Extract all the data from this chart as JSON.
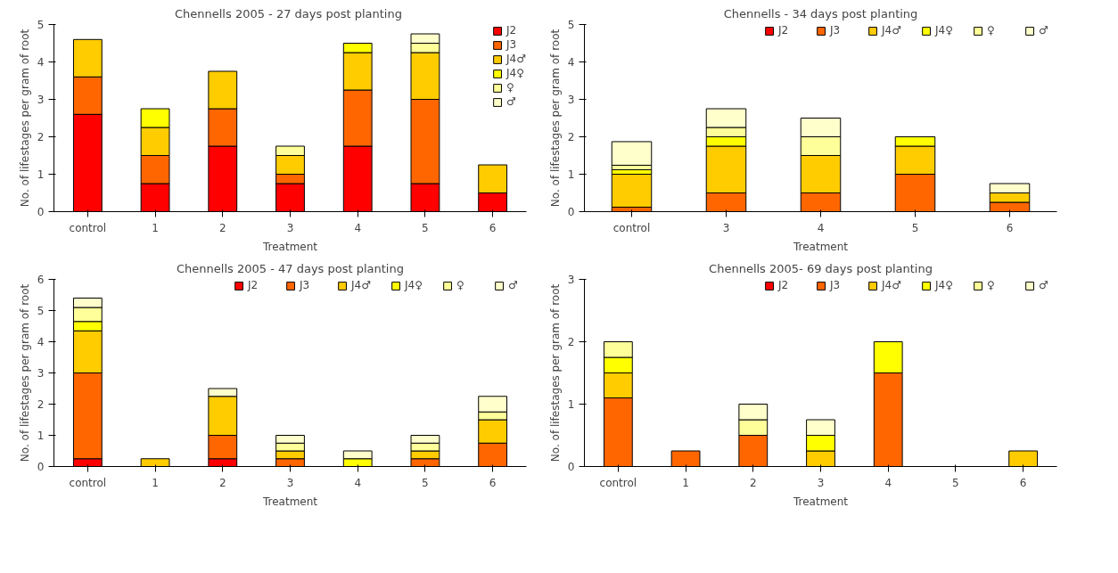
{
  "chart_data": [
    {
      "type": "bar",
      "stacked": true,
      "title": "Chennells  2005 - 27 days post planting",
      "xlabel": "Treatment",
      "ylabel": "No. of lifestages per gram of root",
      "categories": [
        "control",
        "1",
        "2",
        "3",
        "4",
        "5",
        "6"
      ],
      "ylim": [
        0,
        5
      ],
      "yticks": [
        0,
        1,
        2,
        3,
        4,
        5
      ],
      "legend": "top right",
      "grid": false,
      "series": [
        {
          "name": "J2",
          "color": "#ff0000",
          "values": [
            2.6,
            0.75,
            1.75,
            0.75,
            1.75,
            0.75,
            0.5
          ]
        },
        {
          "name": "J3",
          "color": "#ff6600",
          "values": [
            1.0,
            0.75,
            1.0,
            0.25,
            1.5,
            2.25,
            null
          ]
        },
        {
          "name": "J4♂",
          "color": "#ffcc00",
          "values": [
            1.0,
            0.75,
            1.0,
            0.5,
            1.0,
            1.25,
            0.75
          ]
        },
        {
          "name": "J4♀",
          "color": "#ffff00",
          "values": [
            null,
            0.5,
            null,
            null,
            0.25,
            null,
            null
          ]
        },
        {
          "name": "♀",
          "color": "#ffff99",
          "values": [
            null,
            null,
            null,
            0.25,
            null,
            0.25,
            null
          ]
        },
        {
          "name": "♂",
          "color": "#ffffcc",
          "values": [
            null,
            null,
            null,
            null,
            null,
            0.25,
            null
          ]
        }
      ]
    },
    {
      "type": "bar",
      "stacked": true,
      "title": "Chennells - 34 days post planting",
      "xlabel": "Treatment",
      "ylabel": "No. of lifestages per gram of root",
      "categories": [
        "control",
        "3",
        "4",
        "5",
        "6"
      ],
      "ylim": [
        0,
        5
      ],
      "yticks": [
        0,
        1,
        2,
        3,
        4,
        5
      ],
      "legend": "top",
      "grid": false,
      "series": [
        {
          "name": "J2",
          "color": "#ff0000",
          "values": [
            null,
            null,
            null,
            null,
            null
          ]
        },
        {
          "name": "J3",
          "color": "#ff6600",
          "values": [
            0.12,
            0.5,
            0.5,
            1.0,
            0.25
          ]
        },
        {
          "name": "J4♂",
          "color": "#ffcc00",
          "values": [
            0.88,
            1.25,
            1.0,
            0.75,
            0.25
          ]
        },
        {
          "name": "J4♀",
          "color": "#ffff00",
          "values": [
            0.12,
            0.25,
            null,
            0.25,
            null
          ]
        },
        {
          "name": "♀",
          "color": "#ffff99",
          "values": [
            0.12,
            0.25,
            0.5,
            null,
            null
          ]
        },
        {
          "name": "♂",
          "color": "#ffffcc",
          "values": [
            0.63,
            0.5,
            0.5,
            null,
            0.25
          ]
        }
      ]
    },
    {
      "type": "bar",
      "stacked": true,
      "title": "Chennells 2005 - 47 days post planting",
      "xlabel": "Treatment",
      "ylabel": "No. of lifestages per gram of root",
      "categories": [
        "control",
        "1",
        "2",
        "3",
        "4",
        "5",
        "6"
      ],
      "ylim": [
        0,
        6
      ],
      "yticks": [
        0,
        1,
        2,
        3,
        4,
        5,
        6
      ],
      "legend": "top",
      "grid": false,
      "series": [
        {
          "name": "J2",
          "color": "#ff0000",
          "values": [
            0.25,
            null,
            0.25,
            null,
            null,
            null,
            null
          ]
        },
        {
          "name": "J3",
          "color": "#ff6600",
          "values": [
            2.75,
            null,
            0.75,
            0.25,
            null,
            0.25,
            0.75
          ]
        },
        {
          "name": "J4♂",
          "color": "#ffcc00",
          "values": [
            1.35,
            0.25,
            1.25,
            0.25,
            null,
            0.25,
            0.75
          ]
        },
        {
          "name": "J4♀",
          "color": "#ffff00",
          "values": [
            0.3,
            null,
            null,
            null,
            0.25,
            null,
            null
          ]
        },
        {
          "name": "♀",
          "color": "#ffff99",
          "values": [
            0.45,
            null,
            null,
            0.25,
            null,
            0.25,
            0.25
          ]
        },
        {
          "name": "♂",
          "color": "#ffffcc",
          "values": [
            0.3,
            null,
            0.25,
            0.25,
            0.25,
            0.25,
            0.5
          ]
        }
      ]
    },
    {
      "type": "bar",
      "stacked": true,
      "title": "Chennells 2005- 69 days post planting",
      "xlabel": "Treatment",
      "ylabel": "No. of lifestages per gram of root",
      "categories": [
        "control",
        "1",
        "2",
        "3",
        "4",
        "5",
        "6"
      ],
      "ylim": [
        0,
        3
      ],
      "yticks": [
        0,
        1,
        2,
        3
      ],
      "legend": "top",
      "grid": false,
      "series": [
        {
          "name": "J2",
          "color": "#ff0000",
          "values": [
            null,
            null,
            null,
            null,
            null,
            null,
            null
          ]
        },
        {
          "name": "J3",
          "color": "#ff6600",
          "values": [
            1.1,
            0.25,
            0.5,
            null,
            1.5,
            null,
            null
          ]
        },
        {
          "name": "J4♂",
          "color": "#ffcc00",
          "values": [
            0.4,
            null,
            null,
            0.25,
            null,
            null,
            0.25
          ]
        },
        {
          "name": "J4♀",
          "color": "#ffff00",
          "values": [
            0.25,
            null,
            null,
            0.25,
            0.5,
            null,
            null
          ]
        },
        {
          "name": "♀",
          "color": "#ffff99",
          "values": [
            0.25,
            null,
            0.25,
            null,
            null,
            null,
            null
          ]
        },
        {
          "name": "♂",
          "color": "#ffffcc",
          "values": [
            null,
            null,
            0.25,
            0.25,
            null,
            null,
            null
          ]
        }
      ]
    }
  ]
}
